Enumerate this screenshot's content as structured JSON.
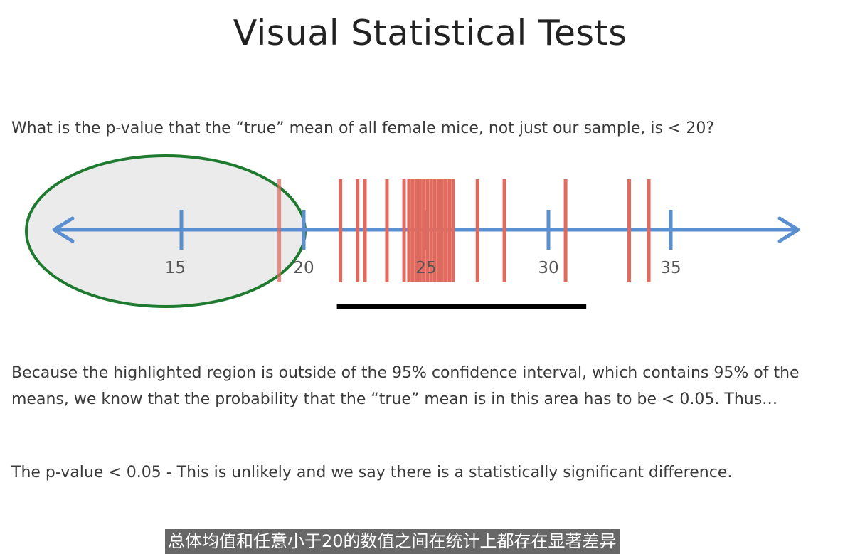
{
  "slide": {
    "title": "Visual Statistical Tests",
    "question": "What is the p-value that the “true” mean of all female mice, not just our sample, is < 20?",
    "explanation": "Because the highlighted region is outside of the 95% confidence interval, which contains 95% of the means, we know that the probability that the “true” mean is in this area has to be < 0.05.  Thus…",
    "conclusion": "The p-value < 0.05 - This is unlikely and we say there is a statistically significant difference."
  },
  "number_line": {
    "ticks": [
      {
        "value": 15,
        "label": "15"
      },
      {
        "value": 20,
        "label": "20"
      },
      {
        "value": 25,
        "label": "25"
      },
      {
        "value": 30,
        "label": "30"
      },
      {
        "value": 35,
        "label": "35"
      }
    ],
    "sample_means": [
      19.0,
      21.5,
      22.2,
      22.5,
      23.4,
      24.1,
      24.3,
      24.45,
      24.6,
      24.75,
      24.9,
      25.05,
      25.2,
      25.35,
      25.5,
      25.65,
      25.8,
      25.95,
      26.1,
      27.1,
      28.2,
      30.7,
      33.3,
      34.1
    ],
    "confidence_interval_95": [
      21.5,
      31.4
    ],
    "highlighted_region_upper": 20
  },
  "colors": {
    "axis": "#5b8fd0",
    "sample_mean_bars": "#e06a5e",
    "highlight_fill": "#ebebeb",
    "highlight_outline": "#1e7a2e",
    "confidence_bar": "#000000"
  },
  "subtitle": {
    "text": "总体均值和任意小于20的数值之间在统计上都存在显著差异"
  }
}
